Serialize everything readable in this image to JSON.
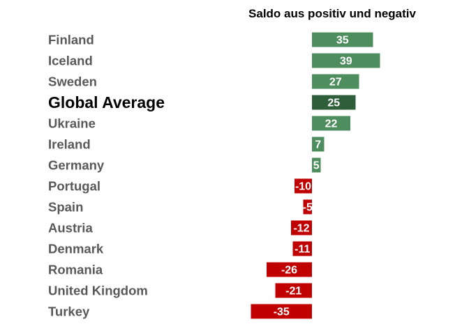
{
  "chart_data": {
    "type": "bar",
    "orientation": "horizontal",
    "title": "Saldo aus positiv und negativ",
    "xlabel": "",
    "ylabel": "",
    "categories": [
      "Finland",
      "Iceland",
      "Sweden",
      "Global Average",
      "Ukraine",
      "Ireland",
      "Germany",
      "Portugal",
      "Spain",
      "Austria",
      "Denmark",
      "Romania",
      "United Kingdom",
      "Turkey"
    ],
    "values": [
      35,
      39,
      27,
      25,
      22,
      7,
      5,
      -10,
      -5,
      -12,
      -11,
      -26,
      -21,
      -35
    ],
    "highlight_category": "Global Average",
    "xlim": [
      -40,
      40
    ],
    "grid": false,
    "legend": "none",
    "colors": {
      "positive": "#4e8d5e",
      "highlight": "#2f5e3b",
      "negative": "#c00000",
      "label": "#595959",
      "highlight_label": "#000000"
    }
  }
}
